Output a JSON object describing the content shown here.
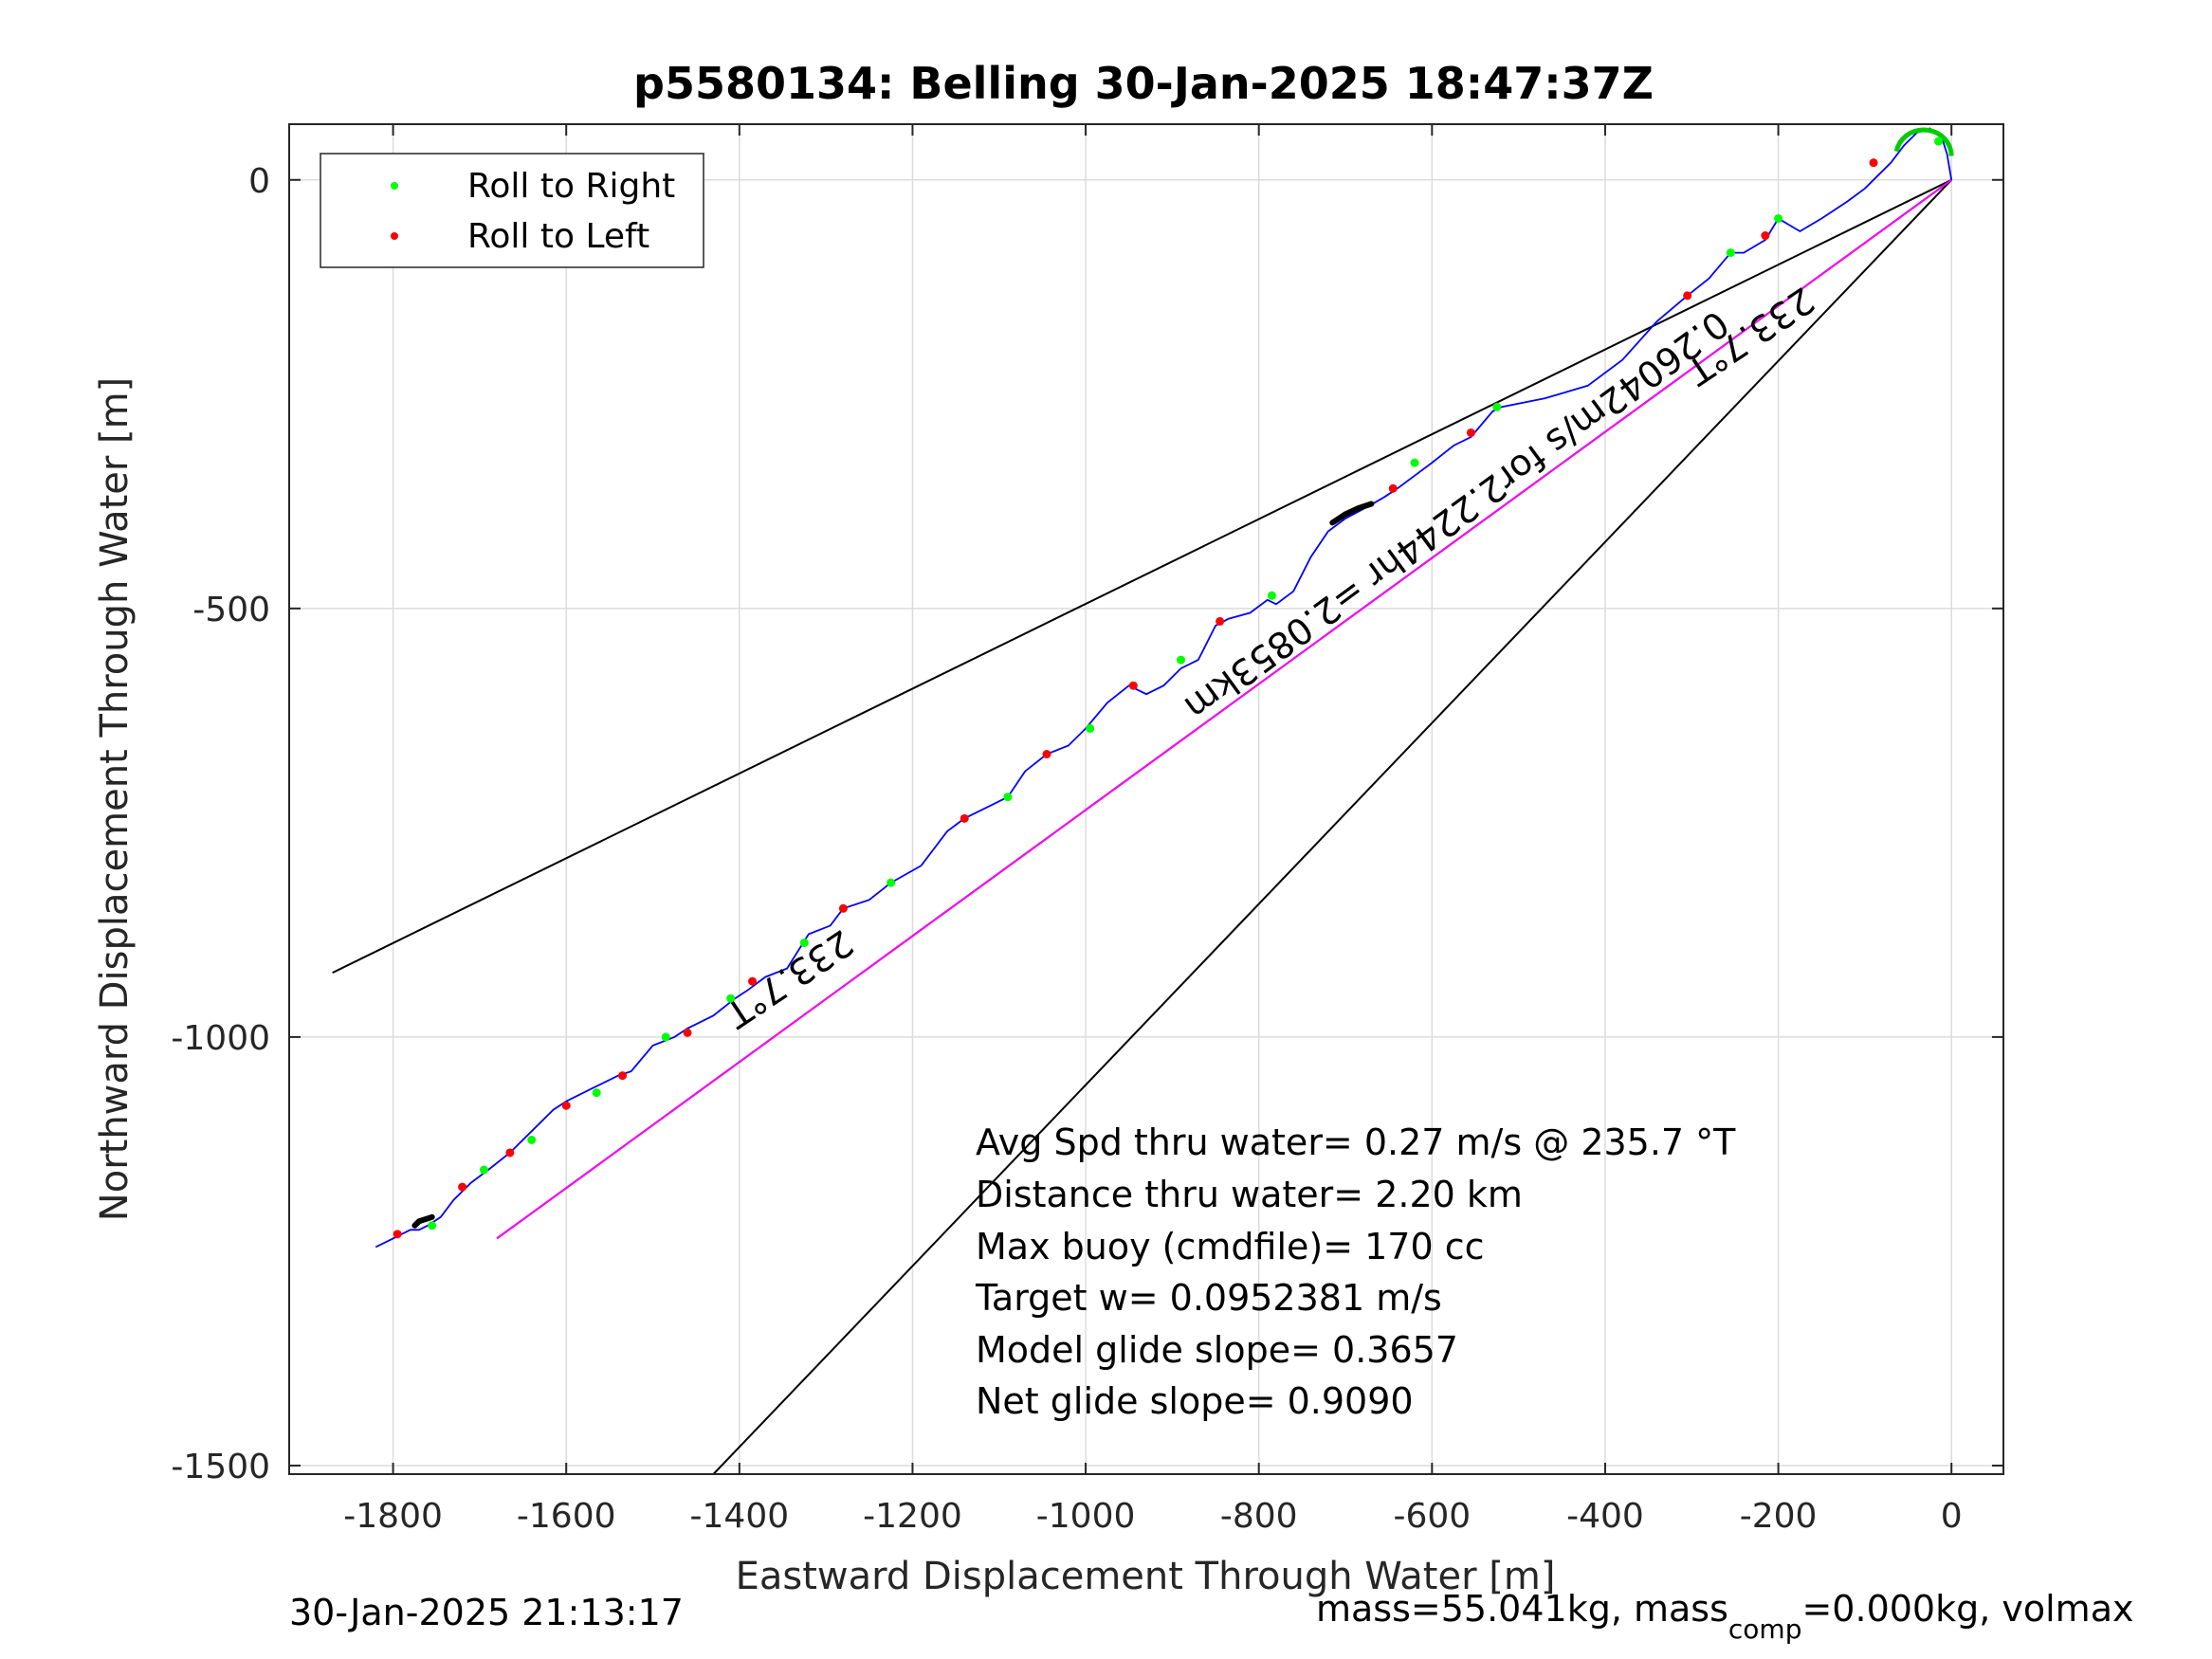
{
  "chart_data": {
    "type": "line",
    "title": "p5580134: Belling 30-Jan-2025 18:47:37Z",
    "xlabel": "Eastward Displacement Through Water [m]",
    "ylabel": "Northward Displacement Through Water [m]",
    "xlim": [
      -1920,
      60
    ],
    "ylim": [
      -1510,
      65
    ],
    "xticks": [
      -1800,
      -1600,
      -1400,
      -1200,
      -1000,
      -800,
      -600,
      -400,
      -200,
      0
    ],
    "yticks": [
      0,
      -500,
      -1000,
      -1500
    ],
    "grid": true,
    "legend": {
      "placement": "top-left",
      "entries": [
        {
          "label": "Roll to Right",
          "color": "#00ff00"
        },
        {
          "label": "Roll to Left",
          "color": "#ff0000"
        }
      ]
    },
    "track": {
      "color": "#0000ff",
      "x": [
        0,
        -5,
        -12,
        -25,
        -40,
        -55,
        -70,
        -85,
        -100,
        -120,
        -150,
        -175,
        -200,
        -215,
        -240,
        -255,
        -280,
        -305,
        -340,
        -380,
        -420,
        -470,
        -520,
        -530,
        -555,
        -575,
        -600,
        -620,
        -640,
        -655,
        -672,
        -700,
        -720,
        -740,
        -760,
        -780,
        -790,
        -810,
        -835,
        -850,
        -870,
        -890,
        -910,
        -930,
        -950,
        -975,
        -1000,
        -1020,
        -1045,
        -1070,
        -1090,
        -1110,
        -1140,
        -1160,
        -1190,
        -1225,
        -1250,
        -1280,
        -1295,
        -1320,
        -1345,
        -1370,
        -1390,
        -1405,
        -1430,
        -1460,
        -1475,
        -1500,
        -1525,
        -1540,
        -1570,
        -1600,
        -1615,
        -1640,
        -1665,
        -1690,
        -1710,
        -1730,
        -1745,
        -1760,
        -1770,
        -1780,
        -1790,
        -1800,
        -1820
      ],
      "y": [
        0,
        30,
        52,
        60,
        55,
        40,
        20,
        5,
        -10,
        -25,
        -45,
        -60,
        -45,
        -70,
        -85,
        -85,
        -115,
        -135,
        -165,
        -210,
        -240,
        -255,
        -265,
        -270,
        -300,
        -310,
        -330,
        -345,
        -360,
        -370,
        -380,
        -395,
        -410,
        -440,
        -480,
        -495,
        -490,
        -505,
        -512,
        -520,
        -560,
        -570,
        -590,
        -600,
        -590,
        -610,
        -640,
        -660,
        -670,
        -690,
        -720,
        -730,
        -745,
        -760,
        -800,
        -820,
        -840,
        -850,
        -870,
        -880,
        -920,
        -930,
        -945,
        -955,
        -975,
        -990,
        -1000,
        -1010,
        -1040,
        -1045,
        -1060,
        -1075,
        -1085,
        -1110,
        -1135,
        -1155,
        -1170,
        -1190,
        -1210,
        -1220,
        -1225,
        -1225,
        -1230,
        -1235,
        -1245
      ]
    },
    "roll_right_points": {
      "color": "#00ff00",
      "x": [
        -200,
        -255,
        -525,
        -620,
        -785,
        -890,
        -995,
        -1090,
        -1225,
        -1325,
        -1410,
        -1485,
        -1565,
        -1640,
        -1695,
        -1755,
        -15
      ],
      "y": [
        -45,
        -85,
        -265,
        -330,
        -485,
        -560,
        -640,
        -720,
        -820,
        -890,
        -955,
        -1000,
        -1065,
        -1120,
        -1155,
        -1220,
        45
      ]
    },
    "roll_left_points": {
      "color": "#ff0000",
      "x": [
        -90,
        -215,
        -305,
        -555,
        -645,
        -845,
        -945,
        -1045,
        -1140,
        -1280,
        -1385,
        -1460,
        -1535,
        -1600,
        -1665,
        -1720,
        -1795
      ],
      "y": [
        20,
        -65,
        -135,
        -295,
        -360,
        -515,
        -590,
        -670,
        -745,
        -850,
        -935,
        -995,
        -1045,
        -1080,
        -1135,
        -1175,
        -1230
      ]
    },
    "black_segments": [
      {
        "x": [
          -715,
          -700,
          -685,
          -670
        ],
        "y": [
          -400,
          -390,
          -383,
          -378
        ]
      },
      {
        "x": [
          -1755,
          -1770,
          -1775
        ],
        "y": [
          -1210,
          -1215,
          -1220
        ]
      }
    ],
    "reference_lines": [
      {
        "name": "heading-upper",
        "color": "#000000",
        "x": [
          0,
          -1870
        ],
        "y": [
          0,
          -925
        ]
      },
      {
        "name": "heading-lower",
        "color": "#000000",
        "x": [
          0,
          -1430
        ],
        "y": [
          0,
          -1510
        ]
      },
      {
        "name": "depth-avg-current",
        "color": "#000000",
        "x": [
          0,
          -1680
        ],
        "y": [
          0,
          -1235
        ]
      },
      {
        "name": "avg-current",
        "color": "#ff00ff",
        "x": [
          0,
          -1680
        ],
        "y": [
          0,
          -1235
        ]
      }
    ],
    "rotated_labels": [
      {
        "text": "233.7°T",
        "x": -240,
        "y": -170,
        "angle": 146.3
      },
      {
        "text": "233.7°T",
        "x": -1350,
        "y": -920,
        "angle": 146.3
      },
      {
        "text": "0.26042m/s for2.2244hr =2.0853km",
        "x": -580,
        "y": -380,
        "angle": 143.7
      }
    ],
    "stats_lines": [
      "Avg Spd thru water=  0.27 m/s @ 235.7 °T",
      "Distance thru water=  2.20 km",
      "Max buoy (cmdfile)= 170 cc",
      "Target w= 0.0952381 m/s",
      "Model glide slope= 0.3657",
      "Net glide slope= 0.9090"
    ]
  },
  "footer": {
    "timestamp": "30-Jan-2025 21:13:17",
    "mass_prefix": "mass=55.041kg, mass",
    "mass_sub": "comp",
    "mass_suffix": "=0.000kg, volmax"
  }
}
